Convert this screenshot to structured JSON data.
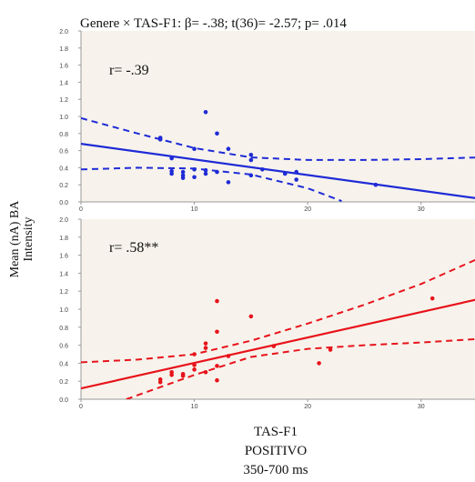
{
  "figure": {
    "title": "Genere × TAS-F1: β= -.38; t(36)= -2.57; p= .014",
    "ylabel_line1": "Mean  (nA) BA",
    "ylabel_line2": "Intensity",
    "xlabel_line1": "TAS-F1",
    "xlabel_line2": "POSITIVO",
    "xlabel_line3": "350-700 ms"
  },
  "colors": {
    "top_series": "#1f2bd6",
    "bottom_series": "#e8131b",
    "plot_background": "#f7f3ec",
    "axis": "#9a9a9a"
  },
  "chart_data": [
    {
      "type": "scatter",
      "annotation": "r= -.39",
      "xlim": [
        0,
        35
      ],
      "ylim": [
        0.0,
        2.0
      ],
      "x_ticks": [
        0,
        10,
        20,
        30
      ],
      "y_ticks": [
        0.0,
        0.2,
        0.4,
        0.6,
        0.8,
        1.0,
        1.2,
        1.4,
        1.6,
        1.8,
        2.0
      ],
      "grid": false,
      "series": [
        {
          "points": [
            [
              7,
              0.75
            ],
            [
              7,
              0.73
            ],
            [
              8,
              0.51
            ],
            [
              8,
              0.36
            ],
            [
              8,
              0.33
            ],
            [
              9,
              0.35
            ],
            [
              9,
              0.31
            ],
            [
              9,
              0.28
            ],
            [
              10,
              0.62
            ],
            [
              10,
              0.38
            ],
            [
              10,
              0.29
            ],
            [
              11,
              1.05
            ],
            [
              11,
              0.37
            ],
            [
              11,
              0.33
            ],
            [
              12,
              0.8
            ],
            [
              12,
              0.35
            ],
            [
              13,
              0.62
            ],
            [
              13,
              0.23
            ],
            [
              15,
              0.55
            ],
            [
              15,
              0.49
            ],
            [
              15,
              0.31
            ],
            [
              16,
              0.38
            ],
            [
              18,
              0.33
            ],
            [
              19,
              0.35
            ],
            [
              19,
              0.26
            ],
            [
              26,
              0.2
            ]
          ],
          "fit": [
            [
              0,
              0.68
            ],
            [
              35,
              0.04
            ]
          ],
          "ci_upper": [
            [
              0,
              0.98
            ],
            [
              5,
              0.8
            ],
            [
              10,
              0.63
            ],
            [
              15,
              0.52
            ],
            [
              20,
              0.49
            ],
            [
              25,
              0.49
            ],
            [
              30,
              0.5
            ],
            [
              35,
              0.52
            ]
          ],
          "ci_lower": [
            [
              0,
              0.38
            ],
            [
              5,
              0.4
            ],
            [
              10,
              0.39
            ],
            [
              15,
              0.32
            ],
            [
              20,
              0.16
            ],
            [
              23,
              0.01
            ]
          ]
        }
      ]
    },
    {
      "type": "scatter",
      "annotation": "r= .58**",
      "xlim": [
        0,
        35
      ],
      "ylim": [
        0.0,
        2.0
      ],
      "x_ticks": [
        0,
        10,
        20,
        30
      ],
      "y_ticks": [
        0.0,
        0.2,
        0.4,
        0.6,
        0.8,
        1.0,
        1.2,
        1.4,
        1.6,
        1.8,
        2.0
      ],
      "grid": false,
      "series": [
        {
          "points": [
            [
              7,
              0.19
            ],
            [
              7,
              0.22
            ],
            [
              8,
              0.27
            ],
            [
              8,
              0.3
            ],
            [
              9,
              0.26
            ],
            [
              9,
              0.28
            ],
            [
              10,
              0.5
            ],
            [
              10,
              0.33
            ],
            [
              10,
              0.38
            ],
            [
              11,
              0.62
            ],
            [
              11,
              0.57
            ],
            [
              11,
              0.3
            ],
            [
              12,
              1.09
            ],
            [
              12,
              0.75
            ],
            [
              12,
              0.37
            ],
            [
              12,
              0.21
            ],
            [
              13,
              0.48
            ],
            [
              15,
              0.92
            ],
            [
              17,
              0.59
            ],
            [
              21,
              0.4
            ],
            [
              22,
              0.55
            ],
            [
              31,
              1.12
            ]
          ],
          "fit": [
            [
              0,
              0.12
            ],
            [
              35,
              1.11
            ]
          ],
          "ci_upper": [
            [
              0,
              0.41
            ],
            [
              5,
              0.44
            ],
            [
              10,
              0.5
            ],
            [
              15,
              0.65
            ],
            [
              20,
              0.84
            ],
            [
              25,
              1.05
            ],
            [
              30,
              1.28
            ],
            [
              35,
              1.56
            ]
          ],
          "ci_lower": [
            [
              4,
              0.0
            ],
            [
              10,
              0.27
            ],
            [
              15,
              0.47
            ],
            [
              20,
              0.56
            ],
            [
              25,
              0.6
            ],
            [
              30,
              0.63
            ],
            [
              35,
              0.67
            ]
          ]
        }
      ]
    }
  ]
}
